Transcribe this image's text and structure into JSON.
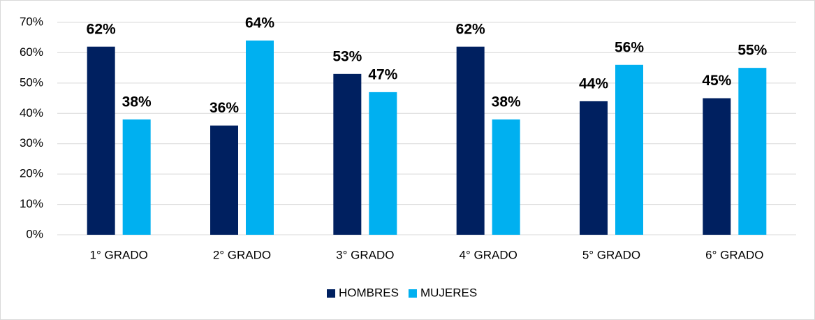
{
  "chart_data": {
    "type": "bar",
    "categories": [
      "1° GRADO",
      "2° GRADO",
      "3° GRADO",
      "4° GRADO",
      "5° GRADO",
      "6° GRADO"
    ],
    "series": [
      {
        "name": "HOMBRES",
        "color": "#002060",
        "values": [
          62,
          36,
          53,
          62,
          44,
          45
        ],
        "value_labels": [
          "62%",
          "36%",
          "53%",
          "62%",
          "44%",
          "45%"
        ]
      },
      {
        "name": "MUJERES",
        "color": "#00b0f0",
        "values": [
          38,
          64,
          47,
          38,
          56,
          55
        ],
        "value_labels": [
          "38%",
          "64%",
          "47%",
          "38%",
          "56%",
          "55%"
        ]
      }
    ],
    "ylim": [
      0,
      70
    ],
    "yticks": [
      {
        "value": 0,
        "label": "0%"
      },
      {
        "value": 10,
        "label": "10%"
      },
      {
        "value": 20,
        "label": "20%"
      },
      {
        "value": 30,
        "label": "30%"
      },
      {
        "value": 40,
        "label": "40%"
      },
      {
        "value": 50,
        "label": "50%"
      },
      {
        "value": 60,
        "label": "60%"
      },
      {
        "value": 70,
        "label": "70%"
      }
    ],
    "grid": true,
    "legend": "bottom"
  }
}
